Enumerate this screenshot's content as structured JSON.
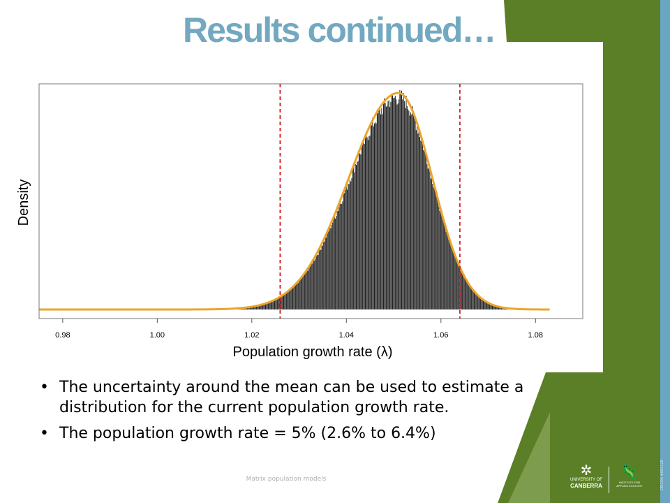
{
  "slide": {
    "title": "Results continued…",
    "bullets": [
      "The uncertainty around the mean can be used to estimate a distribution for the current population growth rate.",
      "The population growth rate = 5% (2.6% to 6.4%)"
    ],
    "footer": "Matrix population models",
    "logos": {
      "university_line1": "UNIVERSITY OF",
      "university_line2": "CANBERRA",
      "institute_line1": "INSTITUTE FOR",
      "institute_line2": "APPLIED ECOLOGY"
    },
    "side_code": "CRICOS #00212K"
  },
  "colors": {
    "title": "#72a9c0",
    "green": "#5b7f26",
    "blue_strip": "#6aa5c1",
    "bars": "#222222",
    "density_curve": "#eca52b",
    "interval_lines": "#d62a2a"
  },
  "chart_data": {
    "type": "histogram",
    "xlabel": "Population growth rate (λ)",
    "ylabel": "Density",
    "xlim": [
      0.975,
      1.09
    ],
    "x_ticks": [
      "0.98",
      "1.00",
      "1.02",
      "1.04",
      "1.06",
      "1.08"
    ],
    "mode": 1.051,
    "interval_lines": [
      1.026,
      1.064
    ],
    "curve_range": [
      0.975,
      1.083
    ],
    "grid": false,
    "legend": "none"
  }
}
